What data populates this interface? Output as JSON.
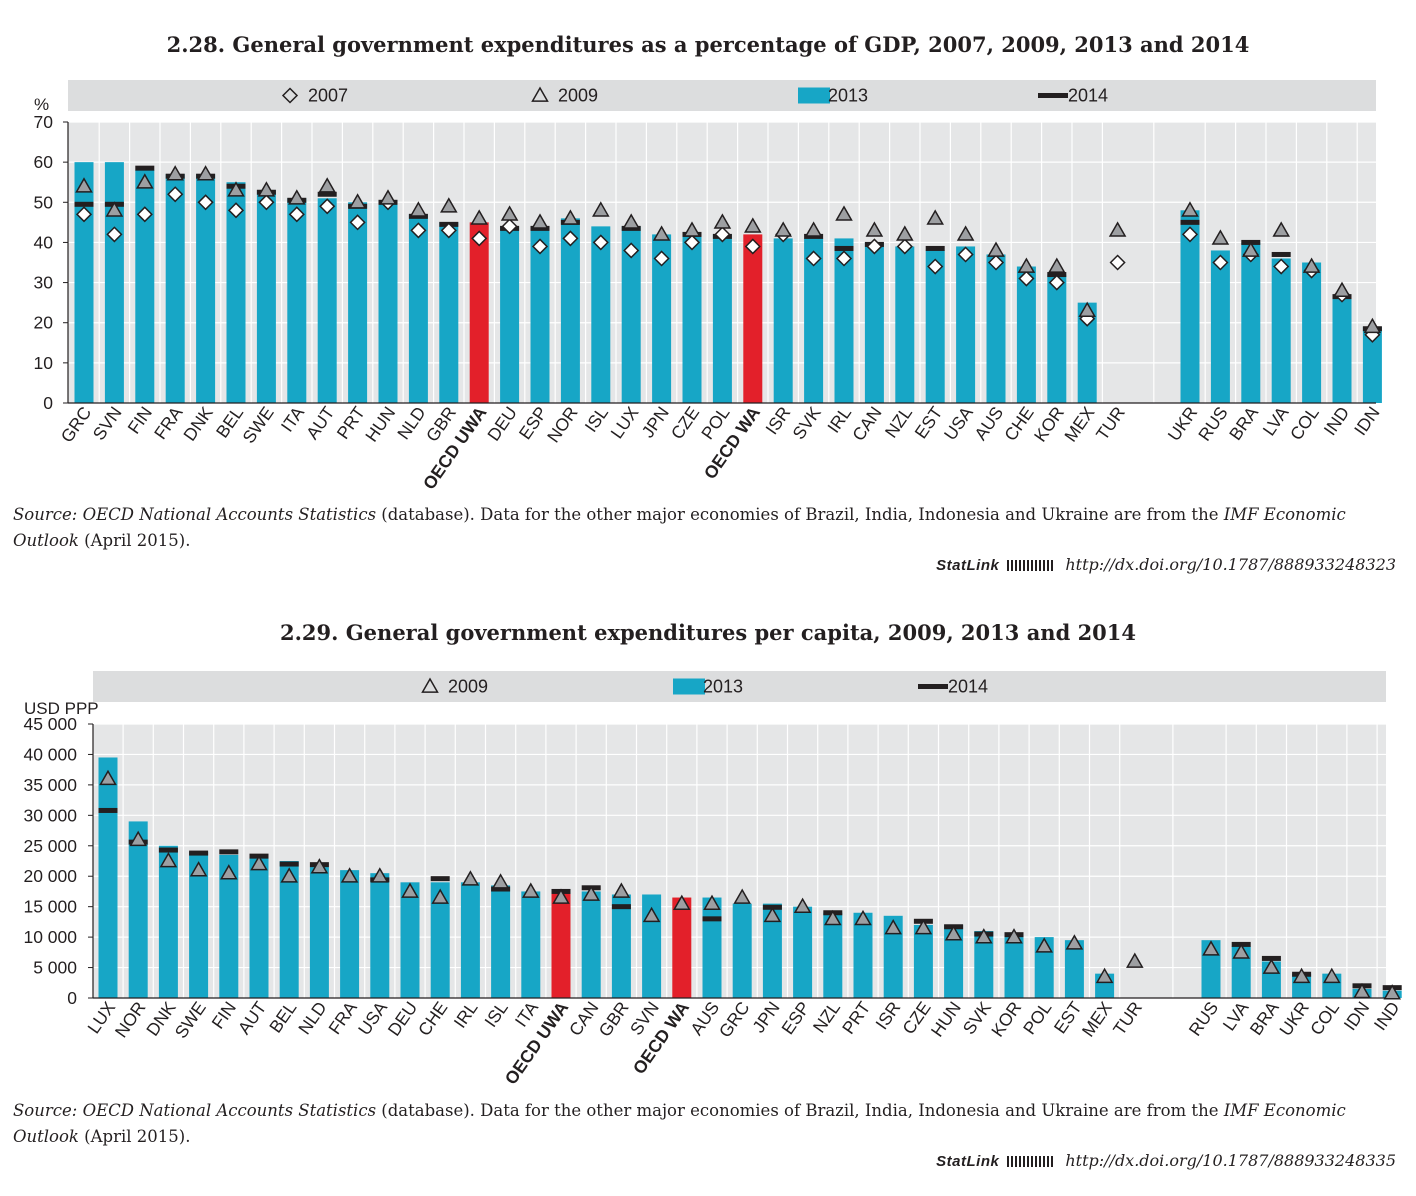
{
  "charts": [
    {
      "title": "2.28.  General government expenditures as a percentage of GDP, 2007, 2009, 2013 and 2014",
      "source": {
        "prefix": "Source:",
        "name": "OECD National Accounts Statistics",
        "text": " (database). Data for the other major economies of Brazil, India, Indonesia and Ukraine are from the ",
        "imf": "IMF Economic Outlook",
        "suffix": " (April 2015)."
      },
      "statlink": {
        "label": "StatLink",
        "url": "http://dx.doi.org/10.1787/888933248323"
      }
    },
    {
      "title": "2.29.  General government expenditures per capita, 2009, 2013 and 2014",
      "source": {
        "prefix": "Source:",
        "name": "OECD National Accounts Statistics",
        "text": " (database). Data for the other major economies of Brazil, India, Indonesia and Ukraine are from the ",
        "imf": "IMF Economic Outlook",
        "suffix": " (April 2015)."
      },
      "statlink": {
        "label": "StatLink",
        "url": "http://dx.doi.org/10.1787/888933248335"
      }
    }
  ],
  "colors": {
    "bar": "#17a6c6",
    "highlight": "#e3202a",
    "marker2014": "#231f20",
    "plot_bg": "#e5e6e7",
    "legend_bg": "#dcddde",
    "grid": "#ffffff"
  },
  "chart_data": [
    {
      "type": "bar",
      "title": "2.28.  General government expenditures as a percentage of GDP, 2007, 2009, 2013 and 2014",
      "ylabel": "%",
      "ylim": [
        0,
        70
      ],
      "yticks": [
        "0",
        "10",
        "20",
        "30",
        "40",
        "50",
        "60",
        "70"
      ],
      "legend_position": "top",
      "highlighted": [
        "OECD UWA",
        "OECD WA"
      ],
      "gap_after": "TUR",
      "categories": [
        "GRC",
        "SVN",
        "FIN",
        "FRA",
        "DNK",
        "BEL",
        "SWE",
        "ITA",
        "AUT",
        "PRT",
        "HUN",
        "NLD",
        "GBR",
        "OECD UWA",
        "DEU",
        "ESP",
        "NOR",
        "ISL",
        "LUX",
        "JPN",
        "CZE",
        "POL",
        "OECD WA",
        "ISR",
        "SVK",
        "IRL",
        "CAN",
        "NZL",
        "EST",
        "USA",
        "AUS",
        "CHE",
        "KOR",
        "MEX",
        "TUR",
        "UKR",
        "RUS",
        "BRA",
        "LVA",
        "COL",
        "IND",
        "IDN"
      ],
      "series": [
        {
          "name": "2007",
          "marker": "diamond",
          "values": [
            47,
            42,
            47,
            52,
            50,
            48,
            50,
            47,
            49,
            45,
            50,
            43,
            43,
            41,
            44,
            39,
            41,
            40,
            38,
            36,
            40,
            42,
            39,
            42,
            36,
            36,
            39,
            39,
            34,
            37,
            35,
            31,
            30,
            21,
            35,
            42,
            35,
            37,
            34,
            33,
            27,
            17
          ]
        },
        {
          "name": "2009",
          "marker": "triangle",
          "values": [
            54,
            48,
            55,
            57,
            57,
            53,
            53,
            51,
            54,
            50,
            51,
            48,
            49,
            46,
            47,
            45,
            46,
            48,
            45,
            42,
            43,
            45,
            44,
            43,
            43,
            47,
            43,
            42,
            46,
            42,
            38,
            34,
            34,
            23,
            43,
            48,
            41,
            38,
            43,
            34,
            28,
            19
          ]
        },
        {
          "name": "2013",
          "marker": "bar",
          "values": [
            60,
            60,
            58,
            57,
            57,
            55,
            53,
            51,
            51,
            50,
            50,
            47,
            45,
            45,
            44,
            44,
            46,
            44,
            44,
            42,
            42,
            42,
            42,
            41,
            41,
            41,
            40,
            39,
            38,
            39,
            37,
            34,
            32,
            25,
            null,
            48,
            38,
            40,
            36,
            35,
            27,
            19
          ]
        },
        {
          "name": "2014",
          "marker": "dash",
          "values": [
            49.5,
            49.5,
            58.5,
            56.5,
            56.5,
            54,
            52.5,
            50.5,
            52,
            49,
            50,
            46.5,
            44.5,
            null,
            43.5,
            43.5,
            45,
            null,
            43.5,
            null,
            42,
            41.5,
            null,
            null,
            41.5,
            38.5,
            39.5,
            null,
            38.5,
            null,
            null,
            null,
            32,
            null,
            null,
            45,
            null,
            40,
            37,
            null,
            26.5,
            18.5
          ]
        }
      ]
    },
    {
      "type": "bar",
      "title": "2.29.  General government expenditures per capita, 2009, 2013 and 2014",
      "ylabel": "USD PPP",
      "ylim": [
        0,
        45000
      ],
      "yticks": [
        "0",
        "5 000",
        "10 000",
        "15 000",
        "20 000",
        "25 000",
        "30 000",
        "35 000",
        "40 000",
        "45 000"
      ],
      "legend_position": "top",
      "highlighted": [
        "OECD UWA",
        "OECD WA"
      ],
      "gap_after": "TUR",
      "categories": [
        "LUX",
        "NOR",
        "DNK",
        "SWE",
        "FIN",
        "AUT",
        "BEL",
        "NLD",
        "FRA",
        "USA",
        "DEU",
        "CHE",
        "IRL",
        "ISL",
        "ITA",
        "OECD UWA",
        "CAN",
        "GBR",
        "SVN",
        "OECD WA",
        "AUS",
        "GRC",
        "JPN",
        "ESP",
        "NZL",
        "PRT",
        "ISR",
        "CZE",
        "HUN",
        "SVK",
        "KOR",
        "POL",
        "EST",
        "MEX",
        "TUR",
        "RUS",
        "LVA",
        "BRA",
        "UKR",
        "COL",
        "IDN",
        "IND"
      ],
      "series": [
        {
          "name": "2009",
          "marker": "triangle",
          "values": [
            36000,
            26000,
            22500,
            21000,
            20500,
            22000,
            20000,
            21500,
            20000,
            20000,
            17500,
            16500,
            19500,
            19000,
            17500,
            16500,
            17000,
            17500,
            13500,
            15500,
            15500,
            16500,
            13500,
            15000,
            13000,
            13000,
            11500,
            11500,
            10500,
            10000,
            10000,
            8500,
            9000,
            3500,
            6000,
            8000,
            7500,
            5000,
            3500,
            3500,
            1000,
            800
          ]
        },
        {
          "name": "2013",
          "marker": "bar",
          "values": [
            39500,
            29000,
            25000,
            24000,
            23500,
            23000,
            22500,
            21500,
            21000,
            20500,
            19000,
            19000,
            19000,
            18500,
            17500,
            17500,
            17500,
            17000,
            17000,
            16500,
            16500,
            15500,
            15500,
            15000,
            14000,
            14000,
            13500,
            12000,
            12000,
            11000,
            10000,
            10000,
            9500,
            4000,
            null,
            9500,
            8500,
            6000,
            4000,
            4000,
            1500,
            1200
          ]
        },
        {
          "name": "2014",
          "marker": "dash",
          "values": [
            30800,
            25600,
            24300,
            23800,
            24000,
            23300,
            22000,
            21900,
            null,
            19400,
            null,
            19600,
            null,
            17900,
            null,
            17500,
            18100,
            15000,
            null,
            null,
            13000,
            null,
            14900,
            null,
            14000,
            null,
            null,
            12600,
            11700,
            10500,
            10400,
            null,
            null,
            null,
            null,
            null,
            8800,
            6500,
            3900,
            null,
            2000,
            1700
          ]
        }
      ]
    }
  ]
}
